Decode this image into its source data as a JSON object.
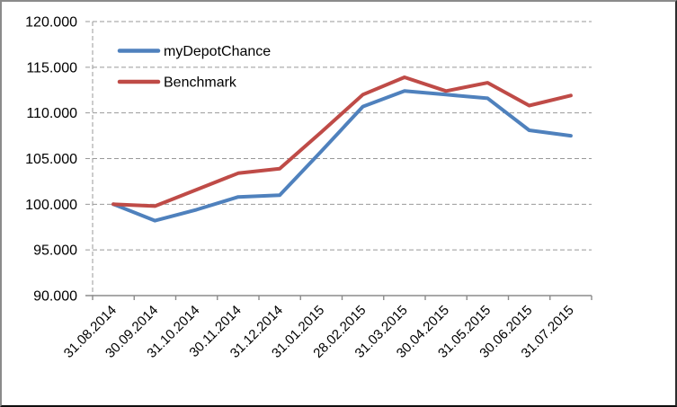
{
  "chart_data": {
    "type": "line",
    "title": "",
    "xlabel": "",
    "ylabel": "",
    "categories": [
      "31.08.2014",
      "30.09.2014",
      "31.10.2014",
      "30.11.2014",
      "31.12.2014",
      "31.01.2015",
      "28.02.2015",
      "31.03.2015",
      "30.04.2015",
      "31.05.2015",
      "30.06.2015",
      "31.07.2015"
    ],
    "series": [
      {
        "name": "myDepotChance",
        "color": "#4F81BD",
        "values": [
          100000,
          98200,
          99400,
          100800,
          101000,
          105800,
          110700,
          112400,
          112000,
          111600,
          108100,
          107500
        ]
      },
      {
        "name": "Benchmark",
        "color": "#BF4B47",
        "values": [
          100000,
          99800,
          101600,
          103400,
          103900,
          107900,
          112000,
          113900,
          112400,
          113300,
          110800,
          111900
        ]
      }
    ],
    "ylim": [
      90000,
      120000
    ],
    "ytick_step": 5000,
    "ytick_labels": [
      "90.000",
      "95.000",
      "100.000",
      "105.000",
      "110.000",
      "115.000",
      "120.000"
    ],
    "grid": "horizontal-dashed",
    "legend_position": "top-left-inside",
    "colors": {
      "axis": "#8C8C8C",
      "gridline": "#999999",
      "text": "#000000",
      "background": "#FFFFFF"
    }
  }
}
